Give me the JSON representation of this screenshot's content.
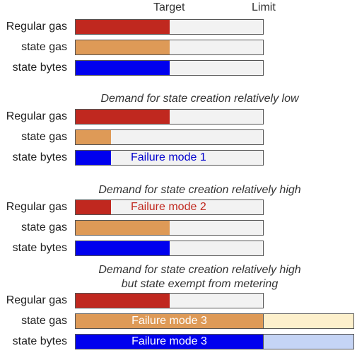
{
  "header": {
    "target_label": "Target",
    "limit_label": "Limit"
  },
  "colors": {
    "regular_gas": "#c0281f",
    "state_gas": "#de9a57",
    "state_bytes": "#0000ee",
    "track": "#f2f2f2",
    "ext_gas": "#fdf0cc",
    "ext_bytes": "#c5d4f5",
    "failure_2_text": "#c0281f",
    "failure_1_text": "#0000cc",
    "failure_3_text": "#ffffff"
  },
  "sections": [
    {
      "title": "",
      "rows": [
        {
          "label": "Regular gas",
          "fill": "regular_gas",
          "level": 0.5,
          "text": ""
        },
        {
          "label": "state gas",
          "fill": "state_gas",
          "level": 0.5,
          "text": ""
        },
        {
          "label": "state bytes",
          "fill": "state_bytes",
          "level": 0.5,
          "text": ""
        }
      ]
    },
    {
      "title": "Demand for state creation relatively low",
      "rows": [
        {
          "label": "Regular gas",
          "fill": "regular_gas",
          "level": 0.5,
          "text": ""
        },
        {
          "label": "state gas",
          "fill": "state_gas",
          "level": 0.19,
          "text": ""
        },
        {
          "label": "state bytes",
          "fill": "state_bytes",
          "level": 0.19,
          "text": "Failure mode 1",
          "text_color": "failure_1_text"
        }
      ]
    },
    {
      "title": "Demand for state creation relatively high",
      "rows": [
        {
          "label": "Regular gas",
          "fill": "regular_gas",
          "level": 0.19,
          "text": "Failure mode 2",
          "text_color": "failure_2_text"
        },
        {
          "label": "state gas",
          "fill": "state_gas",
          "level": 0.5,
          "text": ""
        },
        {
          "label": "state bytes",
          "fill": "state_bytes",
          "level": 0.5,
          "text": ""
        }
      ]
    },
    {
      "title": "Demand for state creation relatively high",
      "title_line2": "but state exempt from metering",
      "rows": [
        {
          "label": "Regular gas",
          "fill": "regular_gas",
          "level": 0.5,
          "text": ""
        },
        {
          "label": "state gas",
          "fill": "state_gas",
          "level": 1.0,
          "text": "Failure mode 3",
          "text_color": "failure_3_text",
          "overflow": "ext_gas"
        },
        {
          "label": "state bytes",
          "fill": "state_bytes",
          "level": 1.0,
          "text": "Failure mode 3",
          "text_color": "failure_3_text",
          "overflow": "ext_bytes"
        }
      ]
    }
  ]
}
